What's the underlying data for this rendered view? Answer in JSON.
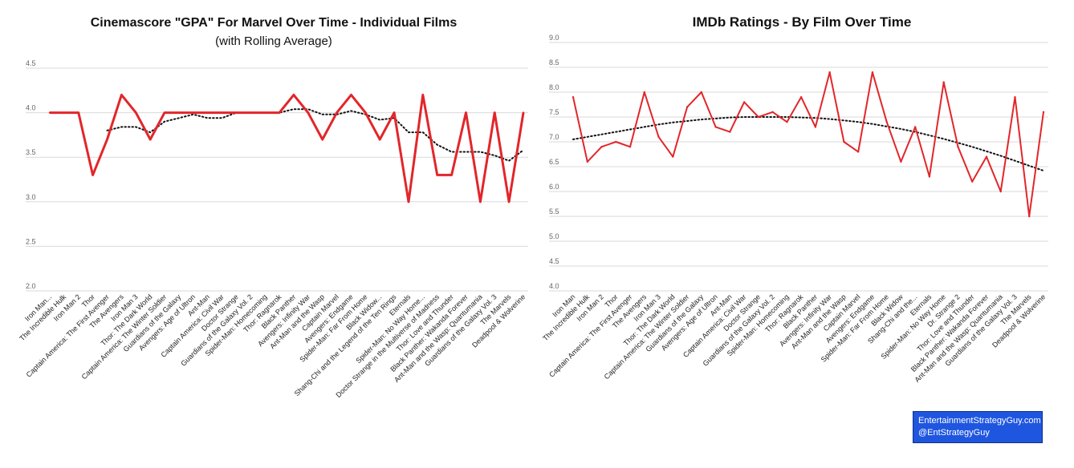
{
  "credit": {
    "line1": "EntertainmentStrategyGuy.com",
    "line2": "@EntStrategyGuy",
    "background": "#1f56e0"
  },
  "colors": {
    "series": "#e2262a",
    "trend": "#111111",
    "grid": "#d9d9d9"
  },
  "chart_data": [
    {
      "type": "line",
      "title": "Cinemascore \"GPA\" For Marvel Over Time - Individual Films",
      "subtitle": "(with Rolling Average)",
      "xlabel": "",
      "ylabel": "",
      "ylim": [
        2.0,
        4.5
      ],
      "yticks": [
        "2.0",
        "2.5",
        "3.0",
        "3.5",
        "4.0",
        "4.5"
      ],
      "grid": "horizontal",
      "categories": [
        "Iron Man...",
        "The Incredible Hulk",
        "Iron Man 2",
        "Thor",
        "Captain America: The First Avenger",
        "The Avengers",
        "Iron Man 3",
        "Thor: The Dark World",
        "Captain America: The Winter Soldier",
        "Guardians of the Galaxy",
        "Avengers: Age of Ultron",
        "Ant-Man",
        "Captain America: Civil War",
        "Doctor Strange",
        "Guardians of the Galaxy Vol. 2",
        "Spider-Man: Homecoming",
        "Thor: Ragnarok",
        "Black Panther",
        "Avengers: Infinity War",
        "Ant-Man and the Wasp",
        "Captain Marvel",
        "Avengers: Endgame",
        "Spider-Man: Far From Home",
        "Black Widow...",
        "Shang-Chi and the Legend of the Ten Rings",
        "Eternals",
        "Spider-Man: No Way Home...",
        "Doctor Strange in the Multiverse of Madness",
        "Thor: Love and Thunder",
        "Black Panther: Wakanda Forever",
        "Ant-Man and the Wasp: Quantumania",
        "Guardians of the Galaxy Vol. 3",
        "The Marvels",
        "Deadpool & Wolverine"
      ],
      "series": [
        {
          "values": [
            4.0,
            4.0,
            4.0,
            3.3,
            3.7,
            4.2,
            4.0,
            3.7,
            4.0,
            4.0,
            4.0,
            4.0,
            4.0,
            4.0,
            4.0,
            4.0,
            4.0,
            4.2,
            4.0,
            3.7,
            4.0,
            4.2,
            4.0,
            3.7,
            4.0,
            3.0,
            4.2,
            3.3,
            3.3,
            4.0,
            3.0,
            4.0,
            3.0,
            4.0
          ]
        }
      ],
      "trend": {
        "style": "rolling average",
        "values": [
          null,
          null,
          null,
          null,
          3.8,
          3.84,
          3.84,
          3.78,
          3.9,
          3.94,
          3.98,
          3.94,
          3.94,
          4.0,
          4.0,
          4.0,
          4.0,
          4.04,
          4.04,
          3.98,
          3.98,
          4.02,
          3.98,
          3.92,
          3.94,
          3.78,
          3.78,
          3.64,
          3.56,
          3.56,
          3.56,
          3.52,
          3.46,
          3.58
        ]
      }
    },
    {
      "type": "line",
      "title": "IMDb Ratings - By Film Over Time",
      "xlabel": "",
      "ylabel": "",
      "ylim": [
        4.0,
        9.0
      ],
      "yticks": [
        "4.0",
        "4.5",
        "5.0",
        "5.5",
        "6.0",
        "6.5",
        "7.0",
        "7.5",
        "8.0",
        "8.5",
        "9.0"
      ],
      "grid": "horizontal",
      "categories": [
        "Iron Man",
        "The Incredible Hulk",
        "Iron Man 2",
        "Thor",
        "Captain America: The First Avenger",
        "The Avengers",
        "Iron Man 3",
        "Thor: The Dark World",
        "Captain America: The Winter Soldier",
        "Guardians of the Galaxy",
        "Avengers: Age of Ultron",
        "Ant-Man",
        "Captain America: Civil War",
        "Doctor Strange",
        "Guardians of the Galaxy Vol. 2",
        "Spider-Man: Homecoming",
        "Thor: Ragnarok",
        "Black Panther",
        "Avengers: Infinity War",
        "Ant-Man and the Wasp",
        "Captain Marvel",
        "Avengers: Endgame",
        "Spider-Man: Far From Home",
        "Black Widow",
        "Shang-Chi and the...",
        "Eternals",
        "Spider-Man: No Way Home",
        "Dr. Strange 2",
        "Thor: Love and Thunder",
        "Black Panther: Wakanda Forever",
        "Ant-Man and the Wasp: Quantumania",
        "Guardians of the Galaxy Vol. 3",
        "The Marvels",
        "Deadpool & Wolverine"
      ],
      "series": [
        {
          "values": [
            7.9,
            6.6,
            6.9,
            7.0,
            6.9,
            8.0,
            7.1,
            6.7,
            7.7,
            8.0,
            7.3,
            7.2,
            7.8,
            7.5,
            7.6,
            7.4,
            7.9,
            7.3,
            8.4,
            7.0,
            6.8,
            8.4,
            7.4,
            6.6,
            7.3,
            6.3,
            8.2,
            6.9,
            6.2,
            6.7,
            6.0,
            7.9,
            5.5,
            7.6
          ]
        }
      ],
      "trend": {
        "style": "polynomial trendline",
        "values": [
          7.05,
          7.1,
          7.15,
          7.2,
          7.25,
          7.3,
          7.35,
          7.39,
          7.42,
          7.45,
          7.47,
          7.49,
          7.5,
          7.5,
          7.5,
          7.5,
          7.49,
          7.48,
          7.46,
          7.43,
          7.4,
          7.36,
          7.31,
          7.26,
          7.2,
          7.13,
          7.06,
          6.98,
          6.9,
          6.81,
          6.72,
          6.62,
          6.52,
          6.42
        ]
      }
    }
  ]
}
